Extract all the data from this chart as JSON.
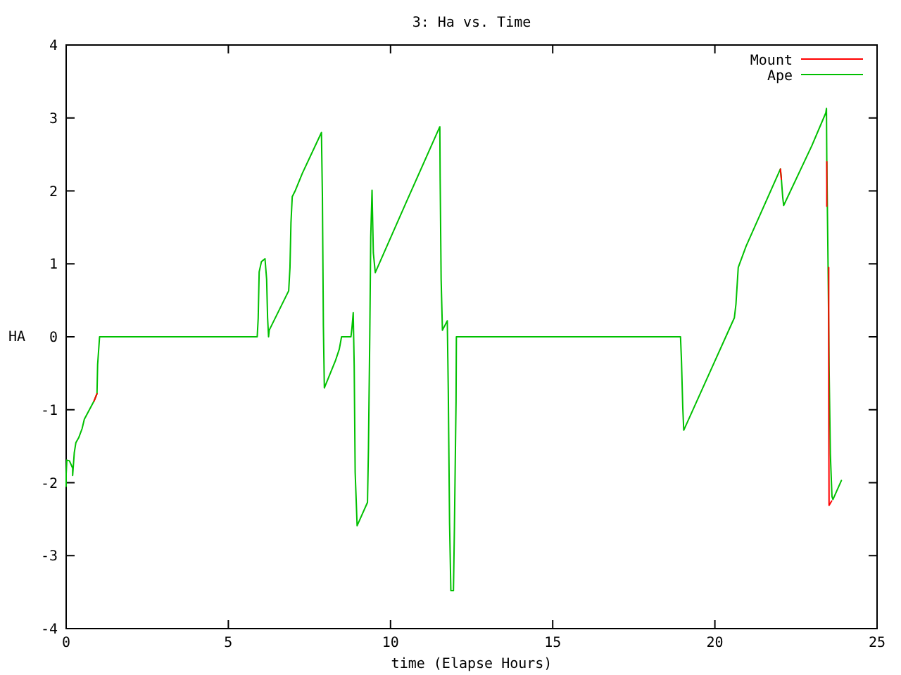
{
  "chart_data": {
    "type": "line",
    "title": "3: Ha vs. Time",
    "xlabel": "time (Elapse Hours)",
    "ylabel": "HA",
    "xlim": [
      0,
      25
    ],
    "xticks": [
      0,
      5,
      10,
      15,
      20,
      25
    ],
    "ylim": [
      -4,
      4
    ],
    "yticks": [
      -4,
      -3,
      -2,
      -1,
      0,
      1,
      2,
      3,
      4
    ],
    "grid": false,
    "legend": "top right",
    "marker": "none",
    "line_style": "solid",
    "series": [
      {
        "name": "Mount",
        "color": "#ff0000",
        "x": [
          0.86,
          0.95,
          null,
          22.02,
          22.05,
          null,
          23.45,
          23.45,
          null,
          23.51,
          23.51,
          23.52,
          23.6
        ],
        "values": [
          -0.88,
          -0.78,
          null,
          2.3,
          2.16,
          null,
          2.4,
          1.79,
          null,
          0.95,
          -0.75,
          -2.31,
          -2.25
        ]
      },
      {
        "name": "Ape",
        "color": "#00c000",
        "x": [
          0,
          0,
          0.02,
          0.1,
          0.2,
          0.2,
          0.25,
          0.3,
          0.39,
          0.49,
          0.56,
          0.86,
          0.95,
          0.97,
          1.03,
          5.89,
          5.92,
          5.95,
          6.02,
          6.13,
          6.18,
          6.21,
          6.24,
          6.26,
          6.86,
          6.9,
          6.93,
          6.97,
          7.07,
          7.28,
          7.87,
          7.9,
          7.93,
          7.96,
          8.3,
          8.42,
          8.49,
          8.78,
          8.81,
          8.85,
          8.88,
          8.91,
          8.97,
          9.29,
          9.32,
          9.36,
          9.39,
          9.43,
          9.47,
          9.53,
          10.52,
          11.52,
          11.53,
          11.56,
          11.6,
          11.75,
          11.78,
          11.82,
          11.86,
          11.94,
          11.97,
          12.02,
          12.03,
          18.94,
          18.97,
          19.01,
          19.04,
          20.6,
          20.65,
          20.72,
          20.96,
          21.95,
          22.02,
          22.05,
          22.09,
          22.12,
          22.99,
          23.42,
          23.44,
          23.45,
          23.49,
          23.52,
          23.56,
          23.61,
          23.64,
          23.9
        ],
        "values": [
          -2.05,
          -1.88,
          -1.69,
          -1.7,
          -1.8,
          -1.9,
          -1.59,
          -1.45,
          -1.38,
          -1.26,
          -1.13,
          -0.88,
          -0.78,
          -0.38,
          0,
          0,
          0.25,
          0.89,
          1.03,
          1.07,
          0.79,
          0.26,
          0,
          0.09,
          0.63,
          0.95,
          1.56,
          1.92,
          2.01,
          2.24,
          2.8,
          1.92,
          0.15,
          -0.7,
          -0.33,
          -0.17,
          0,
          0,
          0.12,
          0.33,
          -0.4,
          -1.86,
          -2.59,
          -2.27,
          -1.52,
          0,
          1.37,
          2.01,
          1.15,
          0.88,
          1.88,
          2.88,
          2.17,
          0.79,
          0.09,
          0.22,
          -0.72,
          -2.55,
          -3.48,
          -3.48,
          -2.61,
          -0.88,
          0,
          0,
          -0.33,
          -0.97,
          -1.28,
          0.26,
          0.45,
          0.95,
          1.24,
          2.23,
          2.3,
          2.16,
          1.92,
          1.8,
          2.62,
          3.07,
          3.13,
          2.43,
          0.95,
          -0.39,
          -1.61,
          -2.19,
          -2.23,
          -1.97
        ]
      }
    ]
  }
}
